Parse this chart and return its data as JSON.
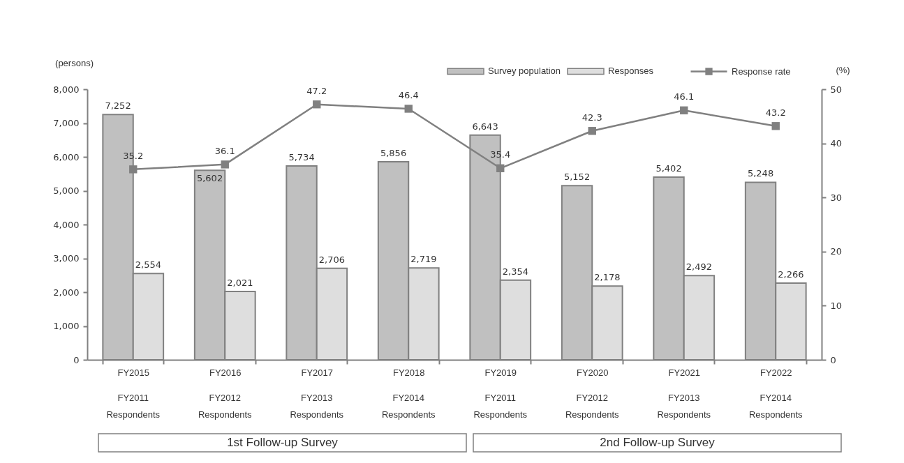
{
  "chart_data": {
    "type": "bar",
    "ylabel": "(persons)",
    "y2label": "(%)",
    "categories": [
      "FY2015",
      "FY2016",
      "FY2017",
      "FY2018",
      "FY2019",
      "FY2020",
      "FY2021",
      "FY2022"
    ],
    "series": [
      {
        "name": "Survey population",
        "color": "#c0c0c0",
        "values": [
          7252,
          5602,
          5734,
          5856,
          6643,
          5152,
          5402,
          5248
        ],
        "value_labels": [
          "7,252",
          "5,602",
          "5,734",
          "5,856",
          "6,643",
          "5,152",
          "5,402",
          "5,248"
        ]
      },
      {
        "name": "Responses",
        "color": "#dedede",
        "values": [
          2554,
          2021,
          2706,
          2719,
          2354,
          2178,
          2492,
          2266
        ],
        "value_labels": [
          "2,554",
          "2,021",
          "2,706",
          "2,719",
          "2,354",
          "2,178",
          "2,492",
          "2,266"
        ]
      },
      {
        "name": "Response rate",
        "type": "line",
        "axis": "y2",
        "color": "#808080",
        "values": [
          35.2,
          36.1,
          47.2,
          46.4,
          35.4,
          42.3,
          46.1,
          43.2
        ],
        "value_labels": [
          "35.2",
          "36.1",
          "47.2",
          "46.4",
          "35.4",
          "42.3",
          "46.1",
          "43.2"
        ]
      }
    ],
    "ylim": [
      0,
      8000
    ],
    "yticks": [
      0,
      {
        "value": 1000,
        "label": "1,000"
      },
      {
        "value": 2000,
        "label": "2,000"
      },
      {
        "value": 3000,
        "label": "3,000"
      },
      {
        "value": 4000,
        "label": "4,000"
      },
      {
        "value": 5000,
        "label": "5,000"
      },
      {
        "value": 6000,
        "label": "6,000"
      },
      {
        "value": 7000,
        "label": "7,000"
      },
      {
        "value": 8000,
        "label": "8,000"
      }
    ],
    "y2lim": [
      0,
      50
    ],
    "y2ticks": [
      0,
      10,
      20,
      30,
      40,
      50
    ],
    "legend": "top right",
    "marker": "square",
    "line_style": "solid",
    "annotations": [
      "FY2011 Respondents",
      "FY2012 Respondents",
      "FY2013 Respondents",
      "FY2014 Respondents",
      "FY2011 Respondents",
      "FY2012 Respondents",
      "FY2013 Respondents",
      "FY2014 Respondents",
      "1st Follow-up Survey",
      "2nd Follow-up Survey"
    ]
  }
}
